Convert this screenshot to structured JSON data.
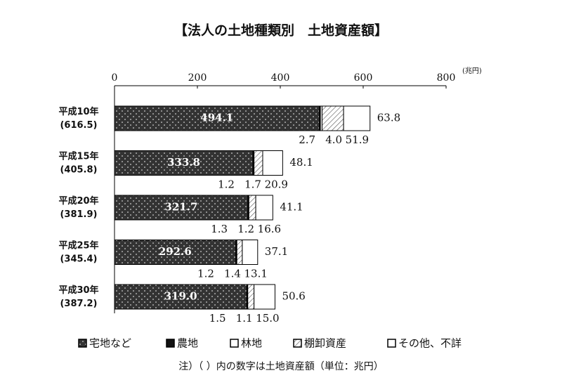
{
  "chart_data": {
    "type": "stacked-barh",
    "title": "【法人の土地種類別　土地資産額】",
    "x_unit": "(兆円)",
    "categories": [
      "平成10年",
      "平成15年",
      "平成20年",
      "平成25年",
      "平成30年"
    ],
    "category_notes": [
      "(616.5)",
      "(405.8)",
      "(381.9)",
      "(345.4)",
      "(387.2)"
    ],
    "xlim": [
      0,
      800
    ],
    "xticks": [
      0,
      200,
      400,
      600,
      800
    ],
    "series": [
      {
        "name": "宅地など",
        "color": "#333333",
        "pattern": "dots",
        "values": [
          494.1,
          333.8,
          321.7,
          292.6,
          319.0
        ],
        "value_labels": [
          "494.1",
          "333.8",
          "321.7",
          "292.6",
          "319.0"
        ]
      },
      {
        "name": "農地",
        "color": "#111111",
        "pattern": "none",
        "values": [
          2.7,
          1.2,
          1.3,
          1.2,
          1.5
        ],
        "value_labels": [
          "2.7",
          "1.2",
          "1.3",
          "1.2",
          "1.5"
        ]
      },
      {
        "name": "林地",
        "color": "#ffffff",
        "pattern": "none",
        "values": [
          4.0,
          1.7,
          1.2,
          1.4,
          1.1
        ],
        "value_labels": [
          "4.0",
          "1.7",
          "1.2",
          "1.4",
          "1.1"
        ]
      },
      {
        "name": "棚卸資産",
        "color": "#ffffff",
        "pattern": "hatch",
        "values": [
          51.9,
          20.9,
          16.6,
          13.1,
          15.0
        ],
        "value_labels": [
          "51.9",
          "20.9",
          "16.6",
          "13.1",
          "15.0"
        ]
      },
      {
        "name": "その他、不詳",
        "color": "#ffffff",
        "pattern": "none",
        "values": [
          63.8,
          48.1,
          41.1,
          37.1,
          50.6
        ],
        "value_labels": [
          "63.8",
          "48.1",
          "41.1",
          "37.1",
          "50.6"
        ]
      }
    ],
    "footnote": "注）（ ）内の数字は土地資産額（単位：兆円）"
  }
}
